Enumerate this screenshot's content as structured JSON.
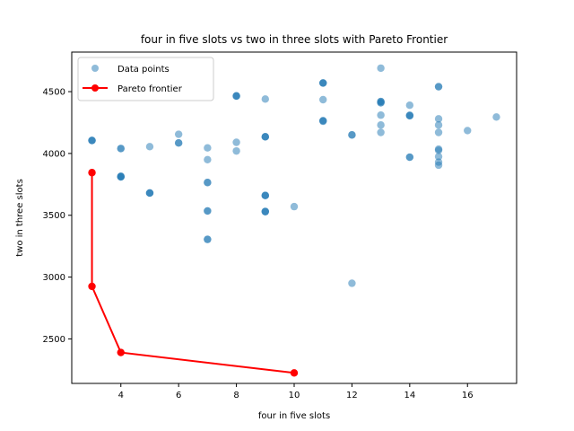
{
  "chart_data": {
    "type": "scatter",
    "title": "four in five slots vs two in three slots with Pareto Frontier",
    "xlabel": "four in five slots",
    "ylabel": "two in three slots",
    "xlim": [
      2.3,
      17.7
    ],
    "ylim": [
      2140,
      4820
    ],
    "xticks": [
      4,
      6,
      8,
      10,
      12,
      14,
      16
    ],
    "yticks": [
      2500,
      3000,
      3500,
      4000,
      4500
    ],
    "grid": false,
    "legend_position": "top-left",
    "series": [
      {
        "name": "Data points",
        "kind": "scatter",
        "color": "#1f77b4",
        "points": [
          [
            3,
            4105
          ],
          [
            3,
            4105
          ],
          [
            3,
            4105
          ],
          [
            4,
            4040
          ],
          [
            4,
            4040
          ],
          [
            4,
            3815
          ],
          [
            4,
            3815
          ],
          [
            4,
            3810
          ],
          [
            4,
            3810
          ],
          [
            5,
            4055
          ],
          [
            5,
            3680
          ],
          [
            5,
            3680
          ],
          [
            5,
            3680
          ],
          [
            6,
            4155
          ],
          [
            6,
            4085
          ],
          [
            6,
            4085
          ],
          [
            7,
            4045
          ],
          [
            7,
            3950
          ],
          [
            7,
            3765
          ],
          [
            7,
            3765
          ],
          [
            7,
            3535
          ],
          [
            7,
            3535
          ],
          [
            7,
            3305
          ],
          [
            7,
            3305
          ],
          [
            8,
            4465
          ],
          [
            8,
            4465
          ],
          [
            8,
            4465
          ],
          [
            8,
            4090
          ],
          [
            8,
            4020
          ],
          [
            9,
            4440
          ],
          [
            9,
            4135
          ],
          [
            9,
            4135
          ],
          [
            9,
            4135
          ],
          [
            9,
            3660
          ],
          [
            9,
            3660
          ],
          [
            9,
            3660
          ],
          [
            9,
            3530
          ],
          [
            9,
            3530
          ],
          [
            9,
            3530
          ],
          [
            10,
            3570
          ],
          [
            11,
            4570
          ],
          [
            11,
            4570
          ],
          [
            11,
            4570
          ],
          [
            11,
            4435
          ],
          [
            11,
            4265
          ],
          [
            11,
            4265
          ],
          [
            11,
            4260
          ],
          [
            12,
            4150
          ],
          [
            12,
            4150
          ],
          [
            12,
            2950
          ],
          [
            13,
            4690
          ],
          [
            13,
            4420
          ],
          [
            13,
            4420
          ],
          [
            13,
            4410
          ],
          [
            13,
            4410
          ],
          [
            13,
            4310
          ],
          [
            13,
            4230
          ],
          [
            13,
            4170
          ],
          [
            14,
            4390
          ],
          [
            14,
            4310
          ],
          [
            14,
            4305
          ],
          [
            14,
            4305
          ],
          [
            14,
            3970
          ],
          [
            14,
            3970
          ],
          [
            15,
            4540
          ],
          [
            15,
            4540
          ],
          [
            15,
            4280
          ],
          [
            15,
            4230
          ],
          [
            15,
            4170
          ],
          [
            15,
            4035
          ],
          [
            15,
            4025
          ],
          [
            15,
            3975
          ],
          [
            15,
            3930
          ],
          [
            15,
            3905
          ],
          [
            16,
            4185
          ],
          [
            17,
            4295
          ]
        ]
      },
      {
        "name": "Pareto frontier",
        "kind": "line",
        "color": "#ff0000",
        "points": [
          [
            3,
            3845
          ],
          [
            3,
            2925
          ],
          [
            4,
            2390
          ],
          [
            10,
            2225
          ]
        ]
      }
    ]
  }
}
